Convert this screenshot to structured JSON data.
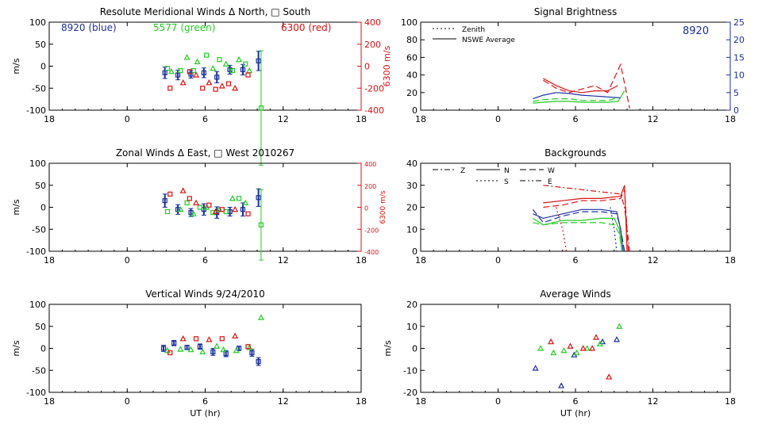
{
  "chart_data": [
    {
      "type": "scatter",
      "panel": "meridional-winds",
      "title": "Resolute Meridional Winds Δ North, □ South",
      "xlabel": "",
      "ylabel": "m/s",
      "y2label": "6300 m/s",
      "x_ticks": [
        "18",
        "0",
        "6",
        "12",
        "18"
      ],
      "y_ticks": [
        "100",
        "50",
        "0",
        "-50",
        "-100"
      ],
      "y2_ticks": [
        "400",
        "200",
        "0",
        "-200",
        "-400"
      ],
      "xlim": [
        -6,
        18
      ],
      "ylim": [
        -100,
        100
      ],
      "y2lim": [
        -400,
        400
      ],
      "legend": [
        {
          "name": "8920 (blue)",
          "color": "#1a2fa0"
        },
        {
          "name": "5577 (green)",
          "color": "#22cc22"
        },
        {
          "name": "6300 (red)",
          "color": "#dd1111"
        }
      ],
      "series": [
        {
          "name": "8920",
          "color": "#1a2fa0",
          "x": [
            2.9,
            3.9,
            4.9,
            5.9,
            6.9,
            7.9,
            8.9,
            10.1
          ],
          "y": [
            -15,
            -20,
            -18,
            -15,
            -25,
            -8,
            -8,
            12
          ],
          "err": [
            13,
            11,
            9,
            11,
            13,
            10,
            12,
            22
          ],
          "marker": "square"
        },
        {
          "name": "5577",
          "color": "#22cc22",
          "x": [
            3.1,
            3.4,
            4.1,
            4.6,
            5.1,
            5.4,
            6.1,
            6.6,
            7.1,
            7.6,
            8.1,
            8.6,
            9.1,
            9.4,
            10.3
          ],
          "y": [
            -5,
            -12,
            -10,
            20,
            -10,
            10,
            25,
            -5,
            15,
            5,
            -10,
            15,
            5,
            -10,
            -95
          ],
          "err": [
            0,
            0,
            0,
            0,
            0,
            0,
            0,
            0,
            0,
            0,
            0,
            0,
            0,
            0,
            130
          ],
          "marker": "mixed"
        },
        {
          "name": "6300",
          "color": "#dd1111",
          "x": [
            3.3,
            4.3,
            4.8,
            5.3,
            5.8,
            6.3,
            6.8,
            7.3,
            7.8,
            8.3,
            9.3
          ],
          "y": [
            -200,
            -150,
            -50,
            -80,
            -200,
            -150,
            -210,
            -180,
            -160,
            -200,
            -80
          ],
          "err": [
            0,
            0,
            0,
            0,
            0,
            0,
            0,
            0,
            0,
            0,
            0
          ],
          "marker": "mixed",
          "axis": "y2"
        }
      ]
    },
    {
      "type": "line",
      "panel": "signal-brightness",
      "title": "Signal Brightness",
      "xlabel": "",
      "ylabel": "",
      "x_ticks": [
        "18",
        "0",
        "6",
        "12",
        "18"
      ],
      "y_ticks": [
        "100",
        "80",
        "60",
        "40",
        "20",
        "0"
      ],
      "y2_ticks": [
        "25",
        "20",
        "15",
        "10",
        "5",
        "0"
      ],
      "xlim": [
        -6,
        18
      ],
      "ylim": [
        0,
        100
      ],
      "y2lim": [
        0,
        25
      ],
      "annotation": "8920",
      "legend": [
        {
          "name": "Zenith",
          "style": "dotted"
        },
        {
          "name": "NSWE Average",
          "style": "solid"
        }
      ],
      "series": [
        {
          "name": "8920",
          "color": "#1a2fa0",
          "style": "solid",
          "x": [
            2.7,
            3.5,
            4.5,
            5.5,
            6.5,
            7.5,
            8.5,
            9.5
          ],
          "y": [
            13,
            17,
            20,
            19,
            17,
            16,
            15,
            14
          ]
        },
        {
          "name": "6300",
          "color": "#dd1111",
          "style": "solid",
          "x": [
            3.5,
            4.5,
            5.5,
            6.5,
            7.5,
            8.5,
            9.3
          ],
          "y": [
            36,
            28,
            22,
            20,
            22,
            22,
            28
          ]
        },
        {
          "name": "6300",
          "color": "#dd1111",
          "style": "dashed",
          "x": [
            3.5,
            4.5,
            5.5,
            6.5,
            7.5,
            8.5,
            9.5,
            10.2
          ],
          "y": [
            34,
            25,
            20,
            24,
            28,
            20,
            52,
            2
          ]
        },
        {
          "name": "5577",
          "color": "#22cc22",
          "style": "solid",
          "x": [
            2.7,
            3.5,
            4.5,
            5.5,
            6.5,
            7.5,
            8.5,
            9.3,
            9.8
          ],
          "y": [
            8,
            9,
            10,
            10,
            9,
            9,
            9,
            10,
            22
          ]
        },
        {
          "name": "5577",
          "color": "#22cc22",
          "style": "dashed",
          "x": [
            2.7,
            3.5,
            4.5,
            5.5,
            6.5,
            7.5,
            8.5,
            9.3
          ],
          "y": [
            10,
            12,
            13,
            13,
            11,
            11,
            11,
            14
          ]
        }
      ]
    },
    {
      "type": "scatter",
      "panel": "zonal-winds",
      "title": "Zonal Winds Δ East, □ West 2010267",
      "xlabel": "",
      "ylabel": "m/s",
      "y2label": "6300 m/s",
      "x_ticks": [
        "18",
        "0",
        "6",
        "12",
        "18"
      ],
      "y_ticks": [
        "100",
        "50",
        "0",
        "-50",
        "-100"
      ],
      "y2_ticks": [
        "400",
        "200",
        "0",
        "-200",
        "-400"
      ],
      "xlim": [
        -6,
        18
      ],
      "ylim": [
        -100,
        100
      ],
      "y2lim": [
        -400,
        400
      ],
      "series": [
        {
          "name": "8920",
          "color": "#1a2fa0",
          "x": [
            2.9,
            3.9,
            4.9,
            5.9,
            6.9,
            7.9,
            8.9,
            10.1
          ],
          "y": [
            15,
            -5,
            -12,
            -5,
            -12,
            -10,
            -5,
            22
          ],
          "err": [
            15,
            11,
            9,
            13,
            13,
            10,
            15,
            20
          ],
          "marker": "square"
        },
        {
          "name": "5577",
          "color": "#22cc22",
          "x": [
            3.1,
            4.1,
            4.6,
            5.1,
            5.6,
            6.1,
            6.6,
            7.1,
            7.6,
            8.1,
            8.6,
            9.1,
            10.3
          ],
          "y": [
            -10,
            -5,
            10,
            -15,
            0,
            0,
            -12,
            -5,
            -10,
            20,
            20,
            10,
            -40
          ],
          "err": [
            0,
            0,
            0,
            0,
            0,
            0,
            0,
            0,
            0,
            0,
            0,
            0,
            80
          ],
          "marker": "mixed"
        },
        {
          "name": "6300",
          "color": "#dd1111",
          "x": [
            3.3,
            4.3,
            4.8,
            5.3,
            6.3,
            6.8,
            7.3,
            8.3,
            9.3
          ],
          "y": [
            120,
            150,
            80,
            40,
            20,
            -40,
            -20,
            -20,
            -60
          ],
          "err": [
            0,
            0,
            0,
            0,
            0,
            0,
            0,
            0,
            0
          ],
          "marker": "mixed",
          "axis": "y2"
        }
      ]
    },
    {
      "type": "line",
      "panel": "backgrounds",
      "title": "Backgrounds",
      "xlabel": "",
      "ylabel": "",
      "x_ticks": [
        "18",
        "0",
        "6",
        "12",
        "18"
      ],
      "y_ticks": [
        "40",
        "30",
        "20",
        "10",
        "0"
      ],
      "xlim": [
        -6,
        18
      ],
      "ylim": [
        0,
        40
      ],
      "legend": [
        {
          "name": "Z",
          "style": "dashdot"
        },
        {
          "name": "N",
          "style": "solid"
        },
        {
          "name": "W",
          "style": "dashed"
        },
        {
          "name": "S",
          "style": "dotted"
        },
        {
          "name": "E",
          "style": "dashdotdot"
        }
      ],
      "series": [
        {
          "name": "Z",
          "color": "#dd1111",
          "style": "dashdot",
          "x": [
            3.5,
            5,
            6.5,
            8,
            9.5,
            9.8,
            10.2
          ],
          "y": [
            30,
            29,
            28,
            27,
            26,
            20,
            0
          ]
        },
        {
          "name": "N",
          "color": "#dd1111",
          "style": "solid",
          "x": [
            3.5,
            5,
            6.5,
            8,
            9.5,
            9.8,
            10.0
          ],
          "y": [
            22,
            23,
            24,
            24,
            25,
            30,
            0
          ]
        },
        {
          "name": "W",
          "color": "#dd1111",
          "style": "dashed",
          "x": [
            3.5,
            5,
            6.5,
            8,
            9.5,
            9.8,
            10.1
          ],
          "y": [
            20,
            21,
            23,
            23,
            24,
            28,
            0
          ]
        },
        {
          "name": "N",
          "color": "#1a2fa0",
          "style": "solid",
          "x": [
            2.7,
            3.5,
            5,
            6.5,
            8,
            9.2,
            9.5,
            9.7
          ],
          "y": [
            17,
            15,
            17,
            19,
            19,
            18,
            10,
            0
          ]
        },
        {
          "name": "W",
          "color": "#1a2fa0",
          "style": "dashed",
          "x": [
            2.7,
            3.5,
            5,
            6.5,
            8,
            9.2,
            9.5,
            9.8
          ],
          "y": [
            19,
            13,
            16,
            18,
            18,
            17,
            10,
            0
          ]
        },
        {
          "name": "N",
          "color": "#22cc22",
          "style": "solid",
          "x": [
            2.7,
            3.5,
            5,
            6.5,
            8,
            9.0,
            9.4,
            9.6
          ],
          "y": [
            15,
            12,
            14,
            14,
            15,
            15,
            10,
            0
          ]
        },
        {
          "name": "W",
          "color": "#22cc22",
          "style": "dashed",
          "x": [
            2.7,
            3.5,
            5,
            6.5,
            8,
            9.0,
            9.4,
            9.6
          ],
          "y": [
            13,
            12,
            13,
            13,
            13,
            12,
            8,
            0
          ]
        },
        {
          "name": "S",
          "color": "#dd1111",
          "style": "dotted",
          "x": [
            4.5,
            5,
            5.3
          ],
          "y": [
            20,
            10,
            0
          ]
        },
        {
          "name": "S",
          "color": "#1a2fa0",
          "style": "dotted",
          "x": [
            8.7,
            9.0,
            9.2
          ],
          "y": [
            20,
            10,
            0
          ]
        }
      ]
    },
    {
      "type": "scatter",
      "panel": "vertical-winds",
      "title": "Vertical Winds 9/24/2010",
      "xlabel": "UT (hr)",
      "ylabel": "m/s",
      "x_ticks": [
        "18",
        "0",
        "6",
        "12",
        "18"
      ],
      "y_ticks": [
        "100",
        "50",
        "0",
        "-50",
        "-100"
      ],
      "xlim": [
        -6,
        18
      ],
      "ylim": [
        -100,
        100
      ],
      "series": [
        {
          "name": "8920",
          "color": "#1a2fa0",
          "x": [
            2.8,
            3.6,
            4.6,
            5.6,
            6.6,
            7.6,
            8.6,
            9.6,
            10.1
          ],
          "y": [
            0,
            12,
            2,
            4,
            -8,
            -12,
            0,
            -10,
            -30
          ],
          "err": [
            7,
            6,
            5,
            6,
            8,
            7,
            5,
            8,
            9
          ],
          "marker": "square"
        },
        {
          "name": "5577",
          "color": "#22cc22",
          "x": [
            3.1,
            4.1,
            4.9,
            5.8,
            6.9,
            7.4,
            8.4,
            9.4,
            10.3
          ],
          "y": [
            -5,
            -2,
            -3,
            -8,
            5,
            -3,
            -5,
            2,
            70
          ],
          "marker": "triangle"
        },
        {
          "name": "6300",
          "color": "#dd1111",
          "x": [
            3.3,
            4.3,
            5.3,
            6.3,
            7.3,
            8.3,
            9.3
          ],
          "y": [
            -10,
            22,
            22,
            20,
            22,
            28,
            4
          ],
          "marker": "mixed"
        }
      ]
    },
    {
      "type": "scatter",
      "panel": "average-winds",
      "title": "Average Winds",
      "xlabel": "UT (hr)",
      "ylabel": "m/s",
      "x_ticks": [
        "18",
        "0",
        "6",
        "12",
        "18"
      ],
      "y_ticks": [
        "20",
        "10",
        "0",
        "-10",
        "-20"
      ],
      "xlim": [
        -6,
        18
      ],
      "ylim": [
        -20,
        20
      ],
      "series": [
        {
          "name": "8920",
          "color": "#1a2fa0",
          "x": [
            2.9,
            4.9,
            5.9,
            8.1,
            9.2
          ],
          "y": [
            -9,
            -17,
            -3,
            3,
            4
          ],
          "marker": "triangle"
        },
        {
          "name": "5577",
          "color": "#22cc22",
          "x": [
            3.3,
            4.3,
            5.1,
            6.1,
            6.9,
            7.9,
            9.4
          ],
          "y": [
            0,
            -2,
            -1,
            -2,
            0,
            2,
            10
          ],
          "marker": "triangle"
        },
        {
          "name": "6300",
          "color": "#dd1111",
          "x": [
            4.1,
            5.6,
            6.6,
            7.3,
            7.6,
            8.6
          ],
          "y": [
            3,
            1,
            0,
            0,
            5,
            -13
          ],
          "marker": "triangle"
        }
      ]
    }
  ]
}
